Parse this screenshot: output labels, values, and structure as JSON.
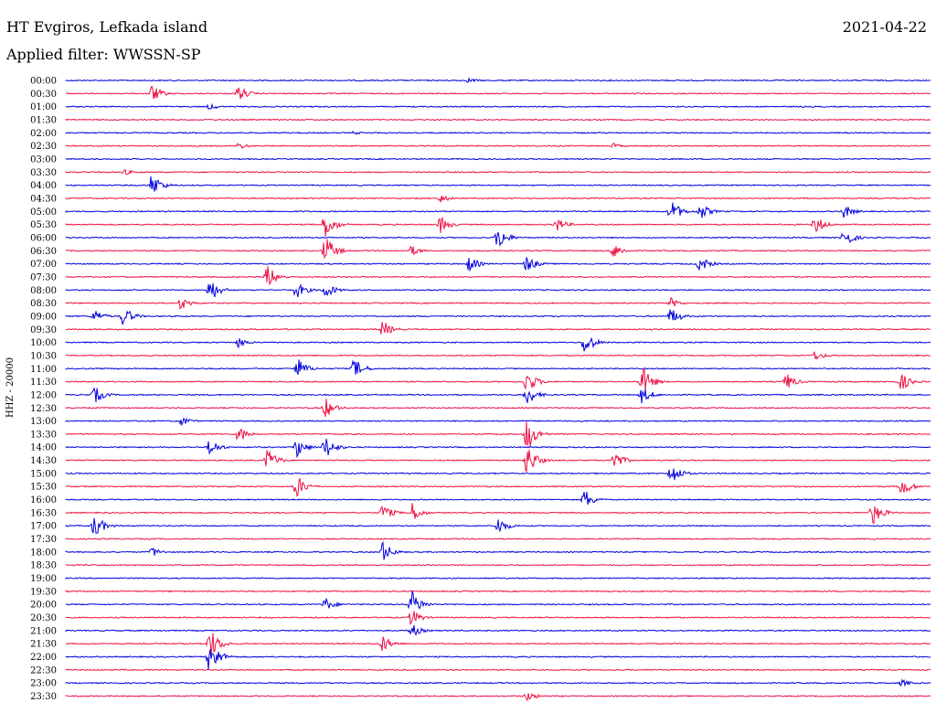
{
  "header": {
    "station": "HT Evgiros, Lefkada island",
    "date": "2021-04-22",
    "filter": "Applied filter: WWSSN-SP"
  },
  "chart_data": {
    "type": "line",
    "ylabel": "HHZ - 20000",
    "tick_labels": [
      "00:00",
      "00:30",
      "01:00",
      "01:30",
      "02:00",
      "02:30",
      "03:00",
      "03:30",
      "04:00",
      "04:30",
      "05:00",
      "05:30",
      "06:00",
      "06:30",
      "07:00",
      "07:30",
      "08:00",
      "08:30",
      "09:00",
      "09:30",
      "10:00",
      "10:30",
      "11:00",
      "11:30",
      "12:00",
      "12:30",
      "13:00",
      "13:30",
      "14:00",
      "14:30",
      "15:00",
      "15:30",
      "16:00",
      "16:30",
      "17:00",
      "17:30",
      "18:00",
      "18:30",
      "19:00",
      "19:30",
      "20:00",
      "20:30",
      "21:00",
      "21:30",
      "22:00",
      "22:30",
      "23:00",
      "23:30"
    ],
    "colors": {
      "even": "#0000dd",
      "odd": "#ee1144"
    },
    "trace_minutes": 30,
    "events": [
      {
        "trace": 0,
        "minute": 14,
        "amp": 3
      },
      {
        "trace": 1,
        "minute": 3,
        "amp": 10
      },
      {
        "trace": 1,
        "minute": 6,
        "amp": 9
      },
      {
        "trace": 2,
        "minute": 5,
        "amp": 4
      },
      {
        "trace": 4,
        "minute": 10,
        "amp": 2
      },
      {
        "trace": 5,
        "minute": 6,
        "amp": 4
      },
      {
        "trace": 5,
        "minute": 19,
        "amp": 3
      },
      {
        "trace": 7,
        "minute": 2,
        "amp": 4
      },
      {
        "trace": 8,
        "minute": 3,
        "amp": 14
      },
      {
        "trace": 9,
        "minute": 13,
        "amp": 5
      },
      {
        "trace": 10,
        "minute": 21,
        "amp": 14
      },
      {
        "trace": 10,
        "minute": 22,
        "amp": 10
      },
      {
        "trace": 10,
        "minute": 27,
        "amp": 8
      },
      {
        "trace": 11,
        "minute": 9,
        "amp": 16
      },
      {
        "trace": 11,
        "minute": 13,
        "amp": 10
      },
      {
        "trace": 11,
        "minute": 17,
        "amp": 9
      },
      {
        "trace": 11,
        "minute": 26,
        "amp": 11
      },
      {
        "trace": 12,
        "minute": 15,
        "amp": 14
      },
      {
        "trace": 12,
        "minute": 27,
        "amp": 12
      },
      {
        "trace": 13,
        "minute": 9,
        "amp": 18
      },
      {
        "trace": 13,
        "minute": 12,
        "amp": 6
      },
      {
        "trace": 13,
        "minute": 19,
        "amp": 9
      },
      {
        "trace": 14,
        "minute": 14,
        "amp": 9
      },
      {
        "trace": 14,
        "minute": 16,
        "amp": 10
      },
      {
        "trace": 14,
        "minute": 22,
        "amp": 10
      },
      {
        "trace": 15,
        "minute": 7,
        "amp": 14
      },
      {
        "trace": 16,
        "minute": 5,
        "amp": 14
      },
      {
        "trace": 16,
        "minute": 8,
        "amp": 10
      },
      {
        "trace": 16,
        "minute": 9,
        "amp": 10
      },
      {
        "trace": 17,
        "minute": 4,
        "amp": 8
      },
      {
        "trace": 17,
        "minute": 21,
        "amp": 6
      },
      {
        "trace": 18,
        "minute": 1,
        "amp": 8
      },
      {
        "trace": 18,
        "minute": 2,
        "amp": 12
      },
      {
        "trace": 18,
        "minute": 21,
        "amp": 10
      },
      {
        "trace": 19,
        "minute": 11,
        "amp": 10
      },
      {
        "trace": 20,
        "minute": 6,
        "amp": 6
      },
      {
        "trace": 20,
        "minute": 18,
        "amp": 14
      },
      {
        "trace": 21,
        "minute": 26,
        "amp": 6
      },
      {
        "trace": 22,
        "minute": 8,
        "amp": 14
      },
      {
        "trace": 22,
        "minute": 10,
        "amp": 12
      },
      {
        "trace": 23,
        "minute": 16,
        "amp": 14
      },
      {
        "trace": 23,
        "minute": 20,
        "amp": 18
      },
      {
        "trace": 23,
        "minute": 25,
        "amp": 10
      },
      {
        "trace": 23,
        "minute": 29,
        "amp": 10
      },
      {
        "trace": 24,
        "minute": 1,
        "amp": 10
      },
      {
        "trace": 24,
        "minute": 16,
        "amp": 12
      },
      {
        "trace": 24,
        "minute": 20,
        "amp": 10
      },
      {
        "trace": 25,
        "minute": 9,
        "amp": 12
      },
      {
        "trace": 26,
        "minute": 4,
        "amp": 6
      },
      {
        "trace": 27,
        "minute": 6,
        "amp": 10
      },
      {
        "trace": 27,
        "minute": 16,
        "amp": 20
      },
      {
        "trace": 28,
        "minute": 5,
        "amp": 10
      },
      {
        "trace": 28,
        "minute": 8,
        "amp": 12
      },
      {
        "trace": 28,
        "minute": 9,
        "amp": 14
      },
      {
        "trace": 29,
        "minute": 7,
        "amp": 14
      },
      {
        "trace": 29,
        "minute": 16,
        "amp": 18
      },
      {
        "trace": 29,
        "minute": 19,
        "amp": 12
      },
      {
        "trace": 30,
        "minute": 21,
        "amp": 14
      },
      {
        "trace": 31,
        "minute": 8,
        "amp": 14
      },
      {
        "trace": 31,
        "minute": 29,
        "amp": 12
      },
      {
        "trace": 32,
        "minute": 18,
        "amp": 12
      },
      {
        "trace": 33,
        "minute": 11,
        "amp": 10
      },
      {
        "trace": 33,
        "minute": 12,
        "amp": 12
      },
      {
        "trace": 33,
        "minute": 28,
        "amp": 14
      },
      {
        "trace": 34,
        "minute": 1,
        "amp": 14
      },
      {
        "trace": 34,
        "minute": 15,
        "amp": 10
      },
      {
        "trace": 36,
        "minute": 3,
        "amp": 6
      },
      {
        "trace": 36,
        "minute": 11,
        "amp": 12
      },
      {
        "trace": 40,
        "minute": 9,
        "amp": 8
      },
      {
        "trace": 40,
        "minute": 12,
        "amp": 16
      },
      {
        "trace": 41,
        "minute": 12,
        "amp": 10
      },
      {
        "trace": 42,
        "minute": 12,
        "amp": 8
      },
      {
        "trace": 43,
        "minute": 5,
        "amp": 18
      },
      {
        "trace": 43,
        "minute": 11,
        "amp": 10
      },
      {
        "trace": 44,
        "minute": 5,
        "amp": 20
      },
      {
        "trace": 46,
        "minute": 29,
        "amp": 4
      },
      {
        "trace": 47,
        "minute": 16,
        "amp": 6
      }
    ]
  }
}
